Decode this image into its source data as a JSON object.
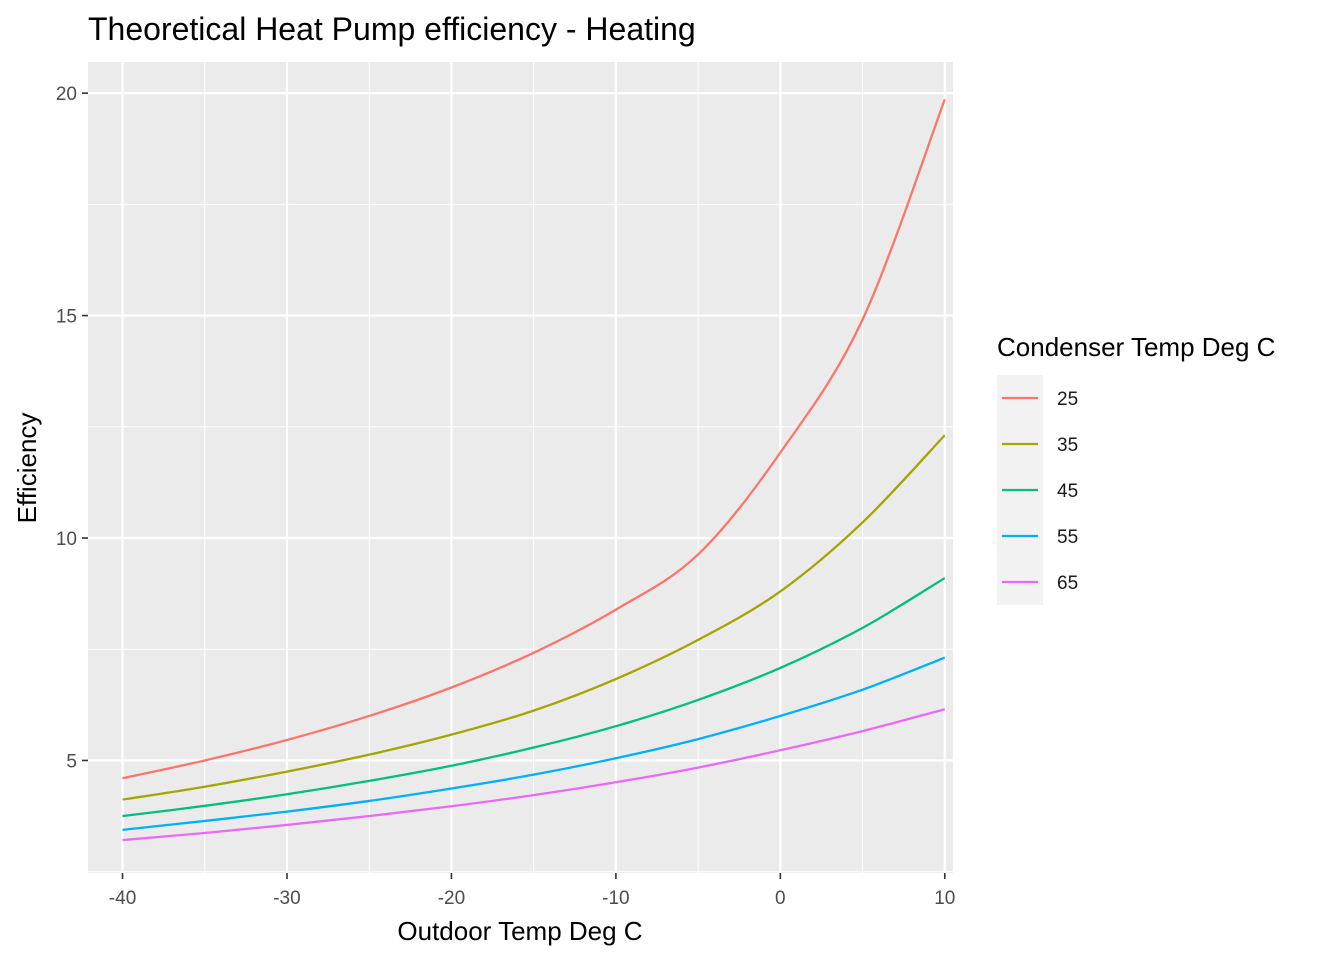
{
  "chart_data": {
    "type": "line",
    "title": "Theoretical Heat Pump efficiency - Heating",
    "xlabel": "Outdoor Temp Deg C",
    "ylabel": "Efficiency",
    "xlim": [
      -42.1,
      10.5
    ],
    "ylim": [
      2.47,
      20.7
    ],
    "xticks": [
      -40,
      -30,
      -20,
      -10,
      0,
      10
    ],
    "xtick_labels": [
      "-40",
      "-30",
      "-20",
      "-10",
      "0",
      "10"
    ],
    "yticks": [
      5,
      10,
      15,
      20
    ],
    "ytick_labels": [
      "5",
      "10",
      "15",
      "20"
    ],
    "grid": true,
    "legend": {
      "title": "Condenser Temp Deg C",
      "position": "right"
    },
    "x": [
      -40,
      -35,
      -30,
      -25,
      -20,
      -15,
      -10,
      -5,
      0,
      5,
      10
    ],
    "series": [
      {
        "name": "25",
        "color": "#F8766D",
        "values": [
          4.6,
          5.0,
          5.46,
          6.0,
          6.64,
          7.42,
          8.39,
          9.63,
          11.92,
          14.91,
          19.86
        ]
      },
      {
        "name": "35",
        "color": "#A3A500",
        "values": [
          4.12,
          4.41,
          4.75,
          5.13,
          5.58,
          6.12,
          6.83,
          7.71,
          8.8,
          10.35,
          12.31
        ]
      },
      {
        "name": "45",
        "color": "#00BF7D",
        "values": [
          3.75,
          3.98,
          4.24,
          4.54,
          4.88,
          5.29,
          5.77,
          6.36,
          7.08,
          7.98,
          9.1
        ]
      },
      {
        "name": "55",
        "color": "#00B0F6",
        "values": [
          3.44,
          3.64,
          3.85,
          4.09,
          4.37,
          4.68,
          5.05,
          5.48,
          6.0,
          6.59,
          7.31
        ]
      },
      {
        "name": "65",
        "color": "#E76BF3",
        "values": [
          3.21,
          3.37,
          3.55,
          3.75,
          3.97,
          4.22,
          4.51,
          4.84,
          5.23,
          5.66,
          6.15
        ]
      }
    ]
  }
}
